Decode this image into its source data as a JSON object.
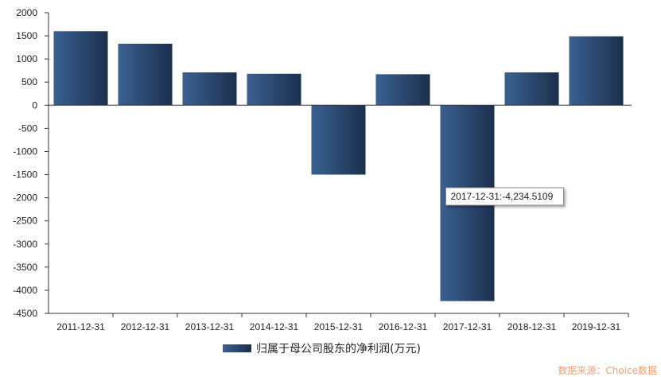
{
  "chart_data": {
    "type": "bar",
    "categories": [
      "2011-12-31",
      "2012-12-31",
      "2013-12-31",
      "2014-12-31",
      "2015-12-31",
      "2016-12-31",
      "2017-12-31",
      "2018-12-31",
      "2019-12-31"
    ],
    "series": [
      {
        "name": "归属于母公司股东的净利润(万元)",
        "values": [
          1600,
          1330,
          710,
          680,
          -1500,
          670,
          -4234.5109,
          710,
          1490
        ]
      }
    ],
    "ylim": [
      -4500,
      2000
    ],
    "yticks": [
      2000,
      1500,
      1000,
      500,
      0,
      -500,
      -1000,
      -1500,
      -2000,
      -2500,
      -3000,
      -3500,
      -4000,
      -4500
    ],
    "legend": "bottom-center",
    "grid": false,
    "tooltip": {
      "text": "2017-12-31:-4,234.5109"
    },
    "source_text": "数据来源：Choice数据",
    "colors": {
      "bar_light": "#3a6192",
      "bar_dark": "#1c2f4c",
      "axis": "#333333"
    }
  }
}
